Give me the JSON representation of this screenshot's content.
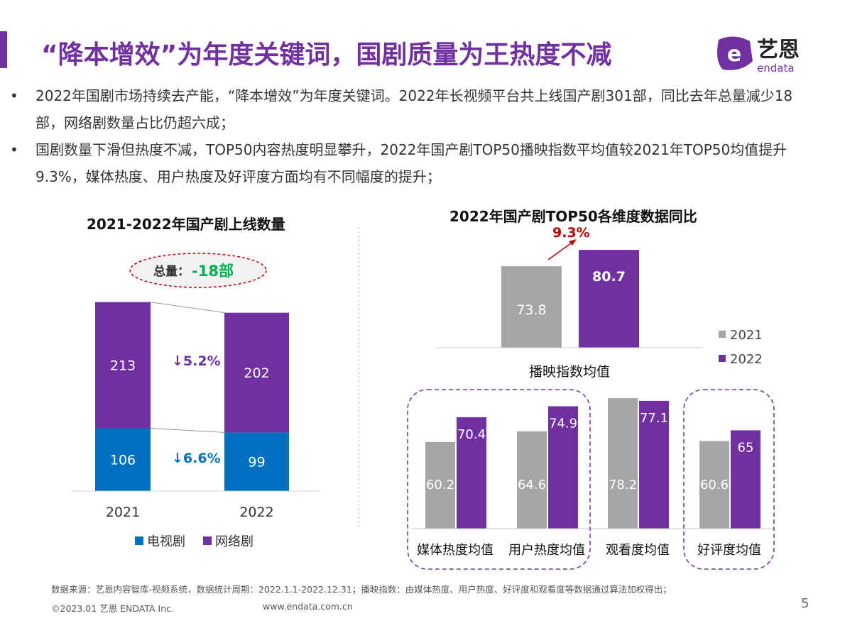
{
  "header": {
    "title": "“降本增效”为年度关键词，国剧质量为王热度不减",
    "logo_text": "艺恩",
    "logo_sub": "endata"
  },
  "bullets": [
    "2022年国剧市场持续去产能，“降本增效”为年度关键词。2022年长视频平台共上线国产剧301部，同比去年总量减少18部，网络剧数量占比仍超六成；",
    "国剧数量下滑但热度不减，TOP50内容热度明显攀升，2022年国产剧TOP50播映指数平均值较2021年TOP50均值提升9.3%，媒体热度、用户热度及好评度方面均有不同幅度的提升；"
  ],
  "bullet_marker": "•",
  "colors": {
    "purple": "#7030a0",
    "blue": "#0070c0",
    "gray": "#a6a6a6",
    "red": "#c00000",
    "green": "#00b050"
  },
  "chart_data": [
    {
      "type": "bar",
      "stacked": true,
      "title": "2021-2022年国产剧上线数量",
      "categories": [
        "2021",
        "2022"
      ],
      "series": [
        {
          "name": "电视剧",
          "values": [
            106,
            99
          ],
          "color": "#0070c0"
        },
        {
          "name": "网络剧",
          "values": [
            213,
            202
          ],
          "color": "#7030a0"
        }
      ],
      "annotations": {
        "total": "总量：",
        "total_change": "-18部",
        "tv_change": "↓6.6%",
        "web_change": "↓5.2%"
      },
      "legend": "bottom"
    },
    {
      "type": "bar",
      "title": "2022年国产剧TOP50各维度数据同比",
      "categories": [
        "播映指数均值"
      ],
      "series": [
        {
          "name": "2021",
          "values": [
            73.8
          ],
          "color": "#a6a6a6"
        },
        {
          "name": "2022",
          "values": [
            80.7
          ],
          "color": "#7030a0"
        }
      ],
      "annotation": "9.3%",
      "legend": "right"
    },
    {
      "type": "bar",
      "categories": [
        "媒体热度均值",
        "用户热度均值",
        "观看度均值",
        "好评度均值"
      ],
      "series": [
        {
          "name": "2021",
          "values": [
            60.2,
            64.6,
            78.2,
            60.6
          ],
          "color": "#a6a6a6"
        },
        {
          "name": "2022",
          "values": [
            70.4,
            74.9,
            77.1,
            65
          ],
          "color": "#7030a0"
        }
      ],
      "highlighted": [
        "媒体热度均值",
        "用户热度均值",
        "好评度均值"
      ]
    }
  ],
  "footer": {
    "source": "数据来源：艺恩内容智库-视频系统，数据统计周期：2022.1.1-2022.12.31；播映指数：由媒体热度、用户热度、好评度和观看度等数据通过算法加权得出；",
    "copyright": "©2023.01 艺恩 ENDATA Inc.",
    "url": "www.endata.com.cn",
    "page": "5"
  }
}
